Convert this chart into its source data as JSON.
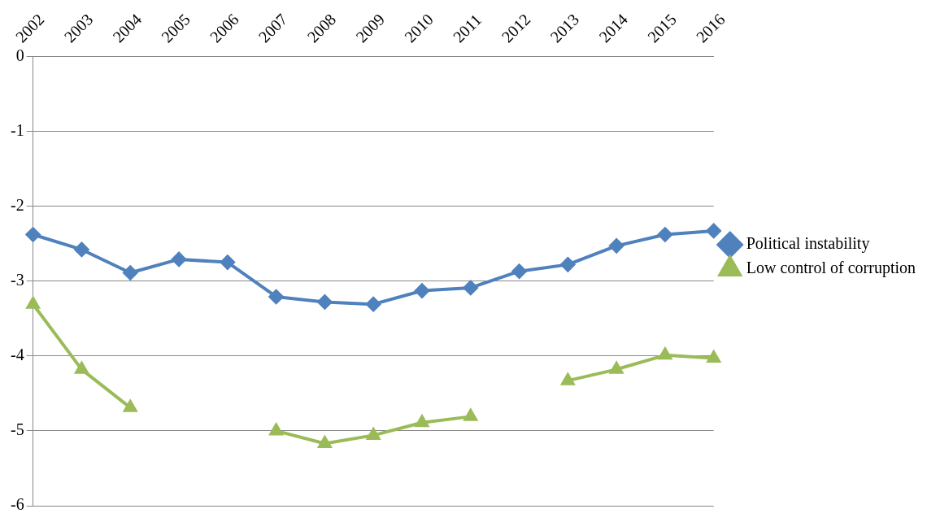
{
  "chart_data": {
    "type": "line",
    "categories": [
      "2002",
      "2003",
      "2004",
      "2005",
      "2006",
      "2007",
      "2008",
      "2009",
      "2010",
      "2011",
      "2012",
      "2013",
      "2014",
      "2015",
      "2016"
    ],
    "series": [
      {
        "name": "Political instability",
        "color": "#4f81bd",
        "marker": "diamond",
        "values": [
          -2.38,
          -2.58,
          -2.89,
          -2.71,
          -2.75,
          -3.21,
          -3.28,
          -3.31,
          -3.13,
          -3.09,
          -2.87,
          -2.78,
          -2.53,
          -2.38,
          -2.33
        ]
      },
      {
        "name": "Low control of corruption",
        "color": "#9bbb59",
        "marker": "triangle",
        "values": [
          -3.31,
          -4.18,
          -4.69,
          null,
          null,
          -5.0,
          -5.17,
          -5.06,
          -4.89,
          -4.81,
          null,
          -4.33,
          -4.18,
          -3.99,
          -4.03
        ]
      }
    ],
    "ylim": [
      -6,
      0
    ],
    "yticks": [
      0,
      -1,
      -2,
      -3,
      -4,
      -5,
      -6
    ],
    "grid": "y",
    "legend": "right"
  }
}
